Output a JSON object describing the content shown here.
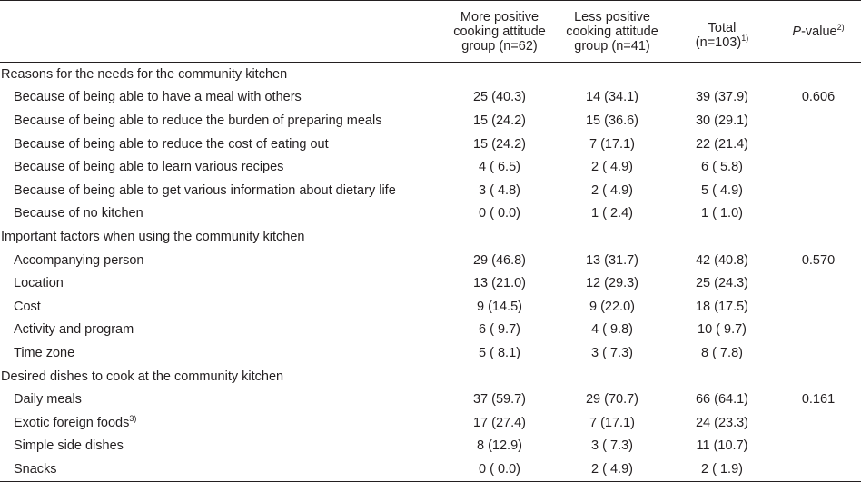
{
  "header": {
    "col1_line1": "More positive",
    "col1_line2": "cooking attitude",
    "col1_line3": "group (n=62)",
    "col2_line1": "Less positive",
    "col2_line2": "cooking attitude",
    "col2_line3": "group  (n=41)",
    "col3_line1": "Total",
    "col3_line2": "(n=103)",
    "col3_sup": "1)",
    "col4_italic": "P",
    "col4_rest": "-value",
    "col4_sup": "2)"
  },
  "sections": [
    {
      "title": "Reasons for the needs for the community kitchen",
      "rows": [
        {
          "label": "Because of being able to have a meal with others",
          "more": "25 (40.3)",
          "less": "14 (34.1)",
          "total": "39 (37.9)",
          "p": "0.606"
        },
        {
          "label": "Because of being able to reduce the burden of preparing meals",
          "more": "15 (24.2)",
          "less": "15 (36.6)",
          "total": "30 (29.1)",
          "p": ""
        },
        {
          "label": "Because of being able to reduce the cost of eating out",
          "more": "15 (24.2)",
          "less": "7 (17.1)",
          "total": "22 (21.4)",
          "p": ""
        },
        {
          "label": "Because of being able to learn various recipes",
          "more": "4 ( 6.5)",
          "less": "2 ( 4.9)",
          "total": "6 ( 5.8)",
          "p": ""
        },
        {
          "label": "Because of being able to get various information about dietary life",
          "more": "3 ( 4.8)",
          "less": "2 ( 4.9)",
          "total": "5 ( 4.9)",
          "p": ""
        },
        {
          "label": "Because of no kitchen",
          "more": "0 ( 0.0)",
          "less": "1 ( 2.4)",
          "total": "1 ( 1.0)",
          "p": ""
        }
      ]
    },
    {
      "title": "Important factors when using the community kitchen",
      "rows": [
        {
          "label": "Accompanying person",
          "more": "29 (46.8)",
          "less": "13 (31.7)",
          "total": "42 (40.8)",
          "p": "0.570"
        },
        {
          "label": "Location",
          "more": "13 (21.0)",
          "less": "12 (29.3)",
          "total": "25 (24.3)",
          "p": ""
        },
        {
          "label": "Cost",
          "more": "9 (14.5)",
          "less": "9 (22.0)",
          "total": "18 (17.5)",
          "p": ""
        },
        {
          "label": "Activity and program",
          "more": "6 ( 9.7)",
          "less": "4 ( 9.8)",
          "total": "10 ( 9.7)",
          "p": ""
        },
        {
          "label": "Time zone",
          "more": "5 ( 8.1)",
          "less": "3 ( 7.3)",
          "total": "8 ( 7.8)",
          "p": ""
        }
      ]
    },
    {
      "title": "Desired dishes to cook at the community kitchen",
      "rows": [
        {
          "label": "Daily meals",
          "more": "37 (59.7)",
          "less": "29 (70.7)",
          "total": "66 (64.1)",
          "p": "0.161"
        },
        {
          "label": "Exotic foreign foods",
          "label_sup": "3)",
          "more": "17 (27.4)",
          "less": "7 (17.1)",
          "total": "24 (23.3)",
          "p": ""
        },
        {
          "label": "Simple side dishes",
          "more": "8 (12.9)",
          "less": "3 ( 7.3)",
          "total": "11 (10.7)",
          "p": ""
        },
        {
          "label": "Snacks",
          "more": "0 ( 0.0)",
          "less": "2 ( 4.9)",
          "total": "2 ( 1.9)",
          "p": ""
        }
      ]
    }
  ]
}
